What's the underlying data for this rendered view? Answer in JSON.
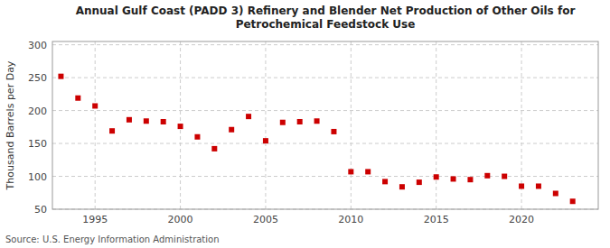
{
  "chart_data": {
    "type": "scatter",
    "title": "Annual Gulf Coast (PADD 3) Refinery and Blender Net Production of Other Oils for\nPetrochemical Feedstock Use",
    "ylabel": "Thousand Barrels per Day",
    "annotations": [
      "Source: U.S. Energy Information Administration"
    ],
    "x": [
      1993,
      1994,
      1995,
      1996,
      1997,
      1998,
      1999,
      2000,
      2001,
      2002,
      2003,
      2004,
      2005,
      2006,
      2007,
      2008,
      2009,
      2010,
      2011,
      2012,
      2013,
      2014,
      2015,
      2016,
      2017,
      2018,
      2019,
      2020,
      2021,
      2022,
      2023
    ],
    "values": [
      252,
      219,
      207,
      169,
      186,
      184,
      183,
      176,
      160,
      142,
      171,
      191,
      154,
      182,
      183,
      184,
      168,
      107,
      107,
      92,
      84,
      91,
      99,
      96,
      95,
      101,
      100,
      85,
      85,
      74,
      62
    ],
    "color": "#cc0000",
    "marker": "square",
    "xlim": [
      1992.5,
      2024.5
    ],
    "ylim": [
      50,
      305
    ],
    "xticks": [
      1995,
      2000,
      2005,
      2010,
      2015,
      2020
    ],
    "yticks": [
      50,
      100,
      150,
      200,
      250,
      300
    ],
    "grid": true
  }
}
